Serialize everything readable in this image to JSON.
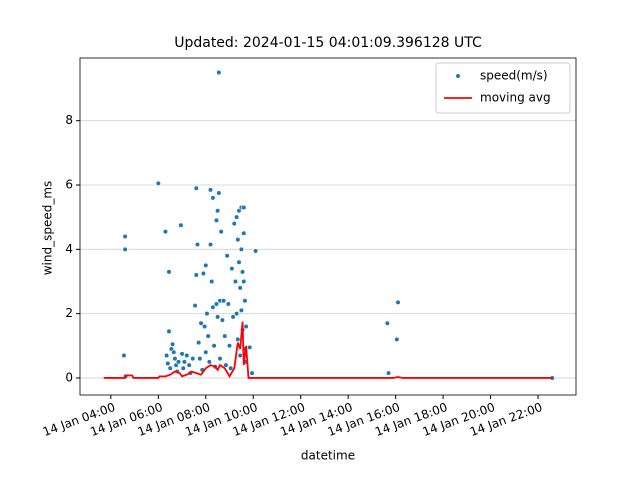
{
  "chart_data": {
    "type": "scatter",
    "title": "Updated: 2024-01-15 04:01:09.396128 UTC",
    "xlabel": "datetime",
    "ylabel": "wind_speed_ms",
    "xlim": [
      2.7,
      23.6
    ],
    "ylim": [
      -0.53,
      9.95
    ],
    "xticks": [
      {
        "value": 4,
        "label": "14 Jan 04:00"
      },
      {
        "value": 6,
        "label": "14 Jan 06:00"
      },
      {
        "value": 8,
        "label": "14 Jan 08:00"
      },
      {
        "value": 10,
        "label": "14 Jan 10:00"
      },
      {
        "value": 12,
        "label": "14 Jan 12:00"
      },
      {
        "value": 14,
        "label": "14 Jan 14:00"
      },
      {
        "value": 16,
        "label": "14 Jan 16:00"
      },
      {
        "value": 18,
        "label": "14 Jan 18:00"
      },
      {
        "value": 20,
        "label": "14 Jan 20:00"
      },
      {
        "value": 22,
        "label": "14 Jan 22:00"
      }
    ],
    "yticks": [
      0,
      2,
      4,
      6,
      8
    ],
    "grid": "y",
    "legend": "upper right",
    "series": [
      {
        "name": "speed(m/s)",
        "type": "scatter",
        "color": "#1f77b4",
        "x": [
          4.6,
          4.6,
          4.55,
          4.62,
          6.0,
          6.3,
          6.45,
          6.45,
          6.35,
          6.4,
          6.5,
          6.55,
          6.6,
          6.65,
          6.7,
          6.75,
          6.8,
          6.85,
          6.95,
          7.0,
          7.05,
          7.1,
          7.2,
          7.3,
          7.35,
          7.45,
          7.55,
          7.6,
          7.65,
          7.6,
          7.7,
          7.75,
          7.8,
          7.85,
          7.9,
          7.95,
          8.0,
          8.0,
          8.05,
          8.1,
          8.15,
          8.2,
          8.2,
          8.25,
          8.3,
          8.3,
          8.35,
          8.4,
          8.45,
          8.45,
          8.5,
          8.5,
          8.55,
          8.55,
          8.6,
          8.6,
          8.65,
          8.7,
          8.75,
          8.8,
          8.85,
          8.9,
          8.95,
          9.0,
          9.05,
          9.1,
          9.15,
          9.2,
          9.25,
          9.3,
          9.3,
          9.35,
          9.35,
          9.4,
          9.4,
          9.45,
          9.45,
          9.5,
          9.5,
          9.5,
          9.55,
          9.55,
          9.6,
          9.6,
          9.6,
          9.65,
          9.65,
          9.7,
          9.7,
          9.85,
          9.95,
          10.1,
          15.65,
          15.7,
          16.1,
          16.05,
          22.6
        ],
        "values": [
          4.4,
          4.0,
          0.7,
          0.05,
          6.05,
          4.55,
          3.3,
          1.45,
          0.7,
          0.45,
          0.3,
          0.9,
          1.05,
          0.8,
          0.6,
          0.4,
          0.2,
          0.5,
          4.75,
          0.75,
          0.3,
          0.5,
          0.7,
          0.4,
          0.15,
          0.6,
          2.25,
          5.9,
          4.15,
          3.2,
          1.1,
          0.6,
          1.7,
          0.25,
          3.25,
          1.6,
          3.5,
          0.8,
          2.0,
          1.3,
          0.5,
          5.85,
          4.15,
          3.0,
          5.6,
          2.2,
          1.0,
          0.35,
          4.9,
          2.3,
          5.2,
          1.9,
          9.5,
          5.75,
          2.4,
          0.6,
          4.55,
          1.8,
          2.4,
          1.3,
          0.4,
          3.8,
          2.3,
          1.0,
          0.3,
          3.4,
          1.9,
          4.8,
          3.0,
          2.0,
          5.0,
          4.3,
          1.2,
          5.2,
          3.6,
          2.8,
          0.7,
          5.3,
          4.0,
          2.1,
          3.3,
          1.5,
          5.3,
          4.5,
          3.0,
          2.4,
          0.9,
          1.6,
          0.5,
          0.95,
          0.15,
          3.95,
          1.7,
          0.15,
          2.35,
          1.2,
          0.0
        ]
      },
      {
        "name": "moving avg",
        "type": "line",
        "color": "#ff0000",
        "x": [
          3.7,
          4.6,
          4.65,
          4.9,
          4.95,
          6.0,
          6.05,
          6.3,
          6.5,
          6.7,
          6.9,
          7.0,
          7.2,
          7.4,
          7.6,
          7.8,
          8.0,
          8.2,
          8.4,
          8.5,
          8.6,
          8.8,
          9.0,
          9.2,
          9.35,
          9.45,
          9.55,
          9.6,
          9.7,
          9.8,
          15.9,
          16.1,
          16.3,
          22.6
        ],
        "values": [
          0,
          0,
          0.08,
          0.08,
          0,
          0,
          0.05,
          0.05,
          0.1,
          0.2,
          0.15,
          0.05,
          0.1,
          0.2,
          0.15,
          0.1,
          0.3,
          0.4,
          0.35,
          0.25,
          0.4,
          0.3,
          0.05,
          0.3,
          1.1,
          0.9,
          1.75,
          0.4,
          1.0,
          0,
          0,
          0.03,
          0,
          0
        ]
      }
    ]
  }
}
